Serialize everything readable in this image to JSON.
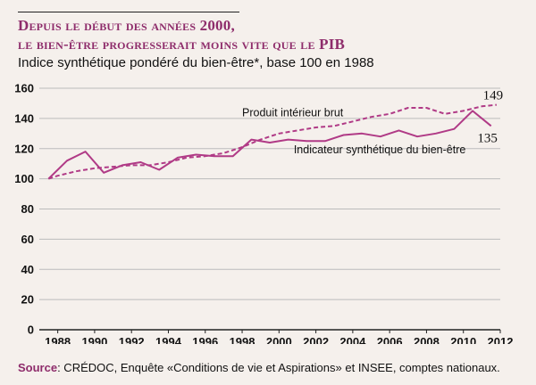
{
  "title_line1": "Depuis le début des années 2000,",
  "title_line2": "le bien-être progresserait moins vite que le PIB",
  "subtitle": "Indice synthétique pondéré du bien-être*, base 100 en 1988",
  "source": {
    "label": "Source",
    "text": ": CRÉDOC, Enquête «Conditions de vie et Aspirations» et INSEE, comptes nationaux."
  },
  "colors": {
    "line": "#b03a86",
    "grid": "#bbbbbb",
    "title": "#8e2c6b"
  },
  "chart_data": {
    "type": "line",
    "title": "Depuis le début des années 2000, le bien-être progresserait moins vite que le PIB",
    "subtitle": "Indice synthétique pondéré du bien-être*, base 100 en 1988",
    "xlabel": "",
    "ylabel": "",
    "xlim": [
      1987,
      2012
    ],
    "ylim": [
      0,
      160
    ],
    "x_ticks": [
      1988,
      1990,
      1992,
      1994,
      1996,
      1998,
      2000,
      2002,
      2004,
      2006,
      2008,
      2010,
      2012
    ],
    "y_ticks": [
      0,
      20,
      40,
      60,
      80,
      100,
      120,
      140,
      160
    ],
    "grid": "horizontal",
    "series": [
      {
        "name": "Produit intérieur brut",
        "style": "dashed",
        "x": [
          1987.5,
          1988,
          1989,
          1990,
          1991,
          1992,
          1993,
          1994,
          1995,
          1996,
          1997,
          1998,
          1999,
          2000,
          2001,
          2002,
          2003,
          2004,
          2005,
          2006,
          2007,
          2008,
          2009,
          2010,
          2011,
          2011.8
        ],
        "values": [
          100,
          102,
          105,
          107,
          108,
          109,
          109,
          111,
          114,
          115,
          117,
          121,
          126,
          130,
          132,
          134,
          135,
          138,
          141,
          143,
          147,
          147,
          143,
          145,
          148,
          149
        ],
        "end_label": "149"
      },
      {
        "name": "Indicateur synthétique du bien-être",
        "style": "solid",
        "x": [
          1987.5,
          1988.5,
          1989.5,
          1990.5,
          1991.5,
          1992.5,
          1993.5,
          1994.5,
          1995.5,
          1996.5,
          1997.5,
          1998.5,
          1999.5,
          2000.5,
          2001.5,
          2002.5,
          2003.5,
          2004.5,
          2005.5,
          2006.5,
          2007.5,
          2008.5,
          2009.5,
          2010.5,
          2011.5
        ],
        "values": [
          100,
          112,
          118,
          104,
          109,
          111,
          106,
          114,
          116,
          115,
          115,
          126,
          124,
          126,
          125,
          125,
          129,
          130,
          128,
          132,
          128,
          130,
          133,
          145,
          135
        ],
        "end_label": "135"
      }
    ]
  }
}
